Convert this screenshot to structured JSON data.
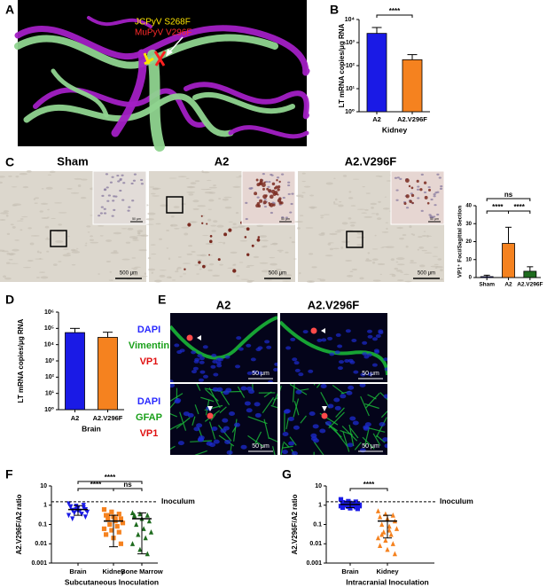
{
  "figure": {
    "panel_a": {
      "label": "A",
      "annotations": [
        "JCPyV S268F",
        "MuPyV V296F"
      ]
    },
    "panel_c": {
      "label": "C",
      "titles": [
        "Sham",
        "A2",
        "A2.V296F"
      ],
      "scale_bars": [
        "500 μm",
        "500 μm",
        "500 μm"
      ],
      "inset_scale_bars": [
        "50 μm",
        "50 μm",
        "50 μm"
      ]
    },
    "panel_e": {
      "label": "E",
      "columns": [
        "A2",
        "A2.V296F"
      ],
      "rows": [
        [
          "DAPI",
          "Vimentin",
          "VP1"
        ],
        [
          "DAPI",
          "GFAP",
          "VP1"
        ]
      ],
      "scale_bars": [
        "50 μm",
        "50 μm",
        "50 μm",
        "50 μm"
      ]
    }
  },
  "chart_data": [
    {
      "panel": "B",
      "type": "bar",
      "categories": [
        "A2",
        "A2.V296F"
      ],
      "values": [
        2500,
        180
      ],
      "errors": [
        2000,
        120
      ],
      "colors": [
        "#1a1ae6",
        "#f5821f"
      ],
      "ylabel": "LT mRNA copies/μg RNA",
      "xlabel": "Kidney",
      "log_scale": true,
      "ylim": [
        1,
        10000
      ],
      "yticks": [
        {
          "value": 1,
          "label": "10⁰"
        },
        {
          "value": 10,
          "label": "10¹"
        },
        {
          "value": 100,
          "label": "10²"
        },
        {
          "value": 1000,
          "label": "10³"
        },
        {
          "value": 10000,
          "label": "10⁴"
        }
      ],
      "annotations": [
        "****"
      ]
    },
    {
      "type": "bar",
      "categories": [
        "Sham",
        "A2",
        "A2.V296F"
      ],
      "values": [
        0.5,
        19,
        3.5
      ],
      "errors": [
        0.8,
        9,
        2.5
      ],
      "colors": [
        "#1a1ae6",
        "#f5821f",
        "#1e6b1e"
      ],
      "ylabel": "VP1⁺ Foci/Sagittal Section",
      "log_scale": false,
      "ylim": [
        0,
        40
      ],
      "yticks": [
        0,
        10,
        20,
        30,
        40
      ],
      "annotations": [
        "ns",
        "****",
        "****"
      ]
    },
    {
      "panel": "D",
      "type": "bar",
      "categories": [
        "A2",
        "A2.V296F"
      ],
      "values": [
        55000,
        28000
      ],
      "errors": [
        45000,
        30000
      ],
      "colors": [
        "#1a1ae6",
        "#f5821f"
      ],
      "ylabel": "LT mRNA copies/μg RNA",
      "xlabel": "Brain",
      "log_scale": true,
      "ylim": [
        1,
        1000000
      ],
      "yticks": [
        {
          "value": 1,
          "label": "10⁰"
        },
        {
          "value": 10,
          "label": "10¹"
        },
        {
          "value": 100,
          "label": "10²"
        },
        {
          "value": 1000,
          "label": "10³"
        },
        {
          "value": 10000,
          "label": "10⁴"
        },
        {
          "value": 100000,
          "label": "10⁵"
        },
        {
          "value": 1000000,
          "label": "10⁶"
        }
      ]
    },
    {
      "panel": "F",
      "type": "scatter",
      "ylabel": "A2.V296F/A2 ratio",
      "xlabel": "Subcutaneous Inoculation",
      "log_scale": true,
      "ylim": [
        0.001,
        10
      ],
      "yticks": [
        0.001,
        0.01,
        0.1,
        1,
        10
      ],
      "reference_line": {
        "value": 1.5,
        "label": "Inoculum"
      },
      "annotations": [
        "****",
        "****",
        "ns"
      ],
      "groups": [
        {
          "category": "Brain",
          "color": "#1a1ae6",
          "marker": "triangle-down",
          "values": [
            1.2,
            0.9,
            1.0,
            0.8,
            0.7,
            0.6,
            0.55,
            0.5,
            0.45,
            0.4,
            0.35,
            0.3,
            0.6,
            0.75,
            0.85,
            0.5,
            0.25,
            0.2
          ],
          "mean": 0.6,
          "error_range": [
            0.3,
            0.95
          ]
        },
        {
          "category": "Kidney",
          "color": "#f5821f",
          "marker": "square",
          "values": [
            0.6,
            0.45,
            0.35,
            0.3,
            0.25,
            0.2,
            0.18,
            0.15,
            0.12,
            0.1,
            0.08,
            0.06,
            0.05,
            0.04,
            0.03,
            0.02,
            0.01,
            0.3,
            0.2
          ],
          "mean": 0.15,
          "error_range": [
            0.007,
            0.3
          ]
        },
        {
          "category": "Bone Marrow",
          "color": "#1e6b1e",
          "marker": "triangle",
          "values": [
            0.4,
            0.35,
            0.3,
            0.25,
            0.2,
            0.15,
            0.1,
            0.06,
            0.04,
            0.03,
            0.02,
            0.01,
            0.005,
            0.003,
            0.3
          ],
          "mean": 0.2,
          "error_range": [
            0.003,
            0.4
          ]
        }
      ]
    },
    {
      "panel": "G",
      "type": "scatter",
      "ylabel": "A2.V296F/A2 ratio",
      "xlabel": "Intracranial Inoculation",
      "log_scale": true,
      "ylim": [
        0.001,
        10
      ],
      "yticks": [
        0.001,
        0.01,
        0.1,
        1,
        10
      ],
      "reference_line": {
        "value": 1.5,
        "label": "Inoculum"
      },
      "annotations": [
        "****"
      ],
      "groups": [
        {
          "category": "Brain",
          "color": "#1a1ae6",
          "marker": "square",
          "values": [
            2.0,
            1.6,
            1.5,
            1.4,
            1.3,
            1.2,
            1.15,
            1.1,
            1.05,
            1.0,
            0.95,
            0.9,
            0.85,
            0.8,
            0.75,
            0.7,
            0.65,
            1.3,
            1.1,
            0.9
          ],
          "mean": 1.1,
          "error_range": [
            0.75,
            1.5
          ]
        },
        {
          "category": "Kidney",
          "color": "#f5821f",
          "marker": "triangle",
          "values": [
            0.5,
            0.35,
            0.3,
            0.25,
            0.2,
            0.15,
            0.1,
            0.08,
            0.06,
            0.04,
            0.03,
            0.02,
            0.015,
            0.01,
            0.008,
            0.005,
            0.003,
            0.03,
            0.05
          ],
          "mean": 0.15,
          "error_range": [
            0.02,
            0.3
          ]
        }
      ]
    }
  ]
}
